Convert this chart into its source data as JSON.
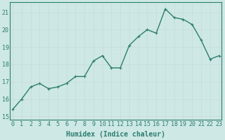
{
  "x": [
    0,
    1,
    2,
    3,
    4,
    5,
    6,
    7,
    8,
    9,
    10,
    11,
    12,
    13,
    14,
    15,
    16,
    17,
    18,
    19,
    20,
    21,
    22,
    23
  ],
  "y": [
    15.4,
    16.0,
    16.7,
    16.9,
    16.6,
    16.7,
    16.9,
    17.3,
    17.3,
    18.2,
    18.5,
    17.8,
    17.8,
    19.1,
    19.6,
    20.0,
    19.8,
    21.2,
    20.7,
    20.6,
    20.3,
    19.4,
    18.3,
    18.5
  ],
  "ylim": [
    14.8,
    21.6
  ],
  "yticks": [
    15,
    16,
    17,
    18,
    19,
    20,
    21
  ],
  "xlabel": "Humidex (Indice chaleur)",
  "line_color": "#2e7d6e",
  "bg_color": "#cde8e5",
  "grid_color_major": "#b0d0cc",
  "grid_color_minor": "#daeee8",
  "markersize": 2.5,
  "linewidth": 1.0,
  "xlabel_fontsize": 7,
  "tick_fontsize": 6
}
